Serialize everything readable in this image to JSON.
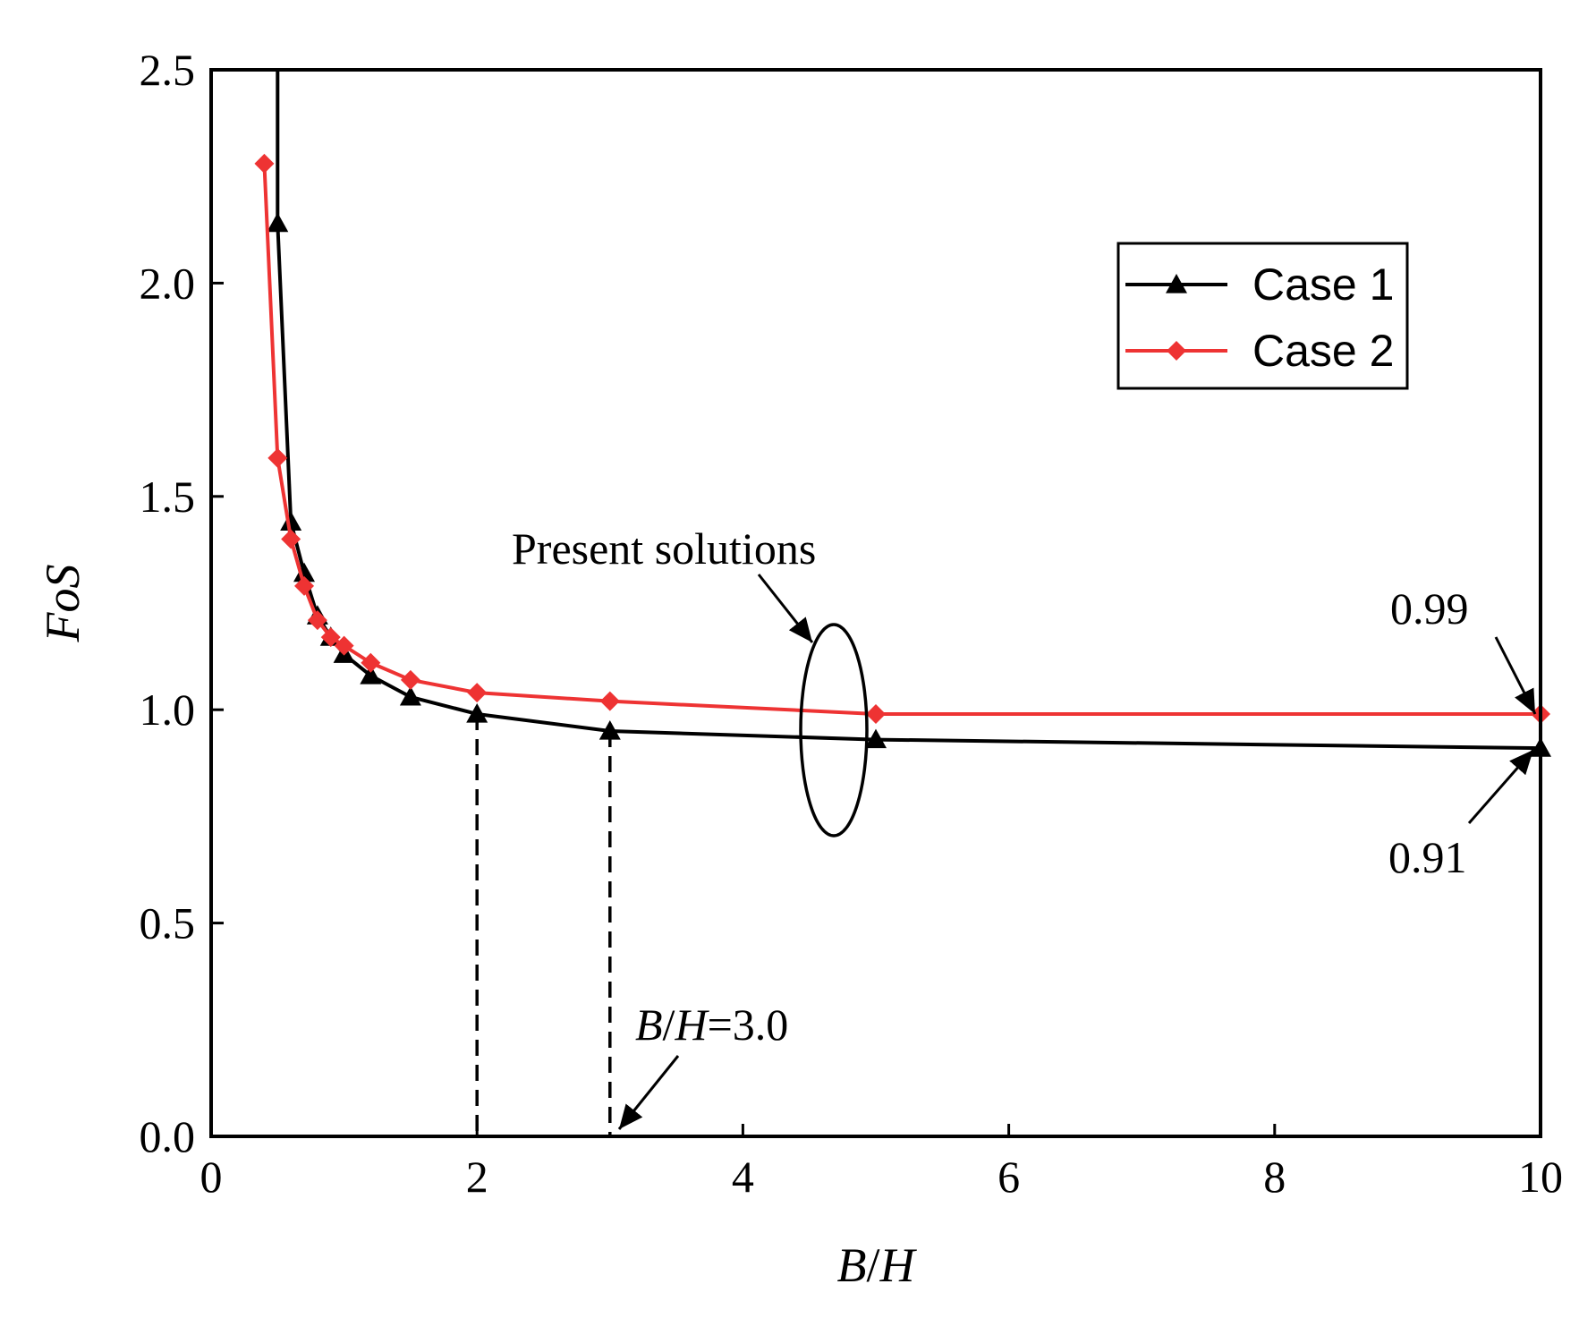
{
  "chart_data": {
    "type": "line",
    "xlabel_parts": [
      {
        "text": "B",
        "italic": true
      },
      {
        "text": "/",
        "italic": false
      },
      {
        "text": "H",
        "italic": true
      }
    ],
    "ylabel": "FoS",
    "xlim": [
      0,
      10
    ],
    "ylim": [
      0,
      2.5
    ],
    "xticks": [
      0,
      2,
      4,
      6,
      8,
      10
    ],
    "xtick_labels": [
      "0",
      "2",
      "4",
      "6",
      "8",
      "10"
    ],
    "yticks": [
      0,
      0.5,
      1.0,
      1.5,
      2.0,
      2.5
    ],
    "ytick_labels": [
      "0.0",
      "0.5",
      "1.0",
      "1.5",
      "2.0",
      "2.5"
    ],
    "grid": false,
    "legend": {
      "position": "top-right"
    },
    "series": [
      {
        "name": "Case 1",
        "color": "#000000",
        "marker": "triangle",
        "x": [
          0.5,
          0.6,
          0.7,
          0.8,
          0.9,
          1.0,
          1.2,
          1.5,
          2.0,
          3.0,
          5.0,
          10.0
        ],
        "y": [
          2.14,
          1.44,
          1.32,
          1.22,
          1.17,
          1.13,
          1.08,
          1.03,
          0.99,
          0.95,
          0.93,
          0.91
        ],
        "y_start": 2.5
      },
      {
        "name": "Case 2",
        "color": "#ee3333",
        "marker": "diamond",
        "x": [
          0.4,
          0.5,
          0.6,
          0.7,
          0.8,
          0.9,
          1.0,
          1.2,
          1.5,
          2.0,
          3.0,
          5.0,
          10.0
        ],
        "y": [
          2.28,
          1.59,
          1.4,
          1.29,
          1.21,
          1.17,
          1.15,
          1.11,
          1.07,
          1.04,
          1.02,
          0.99,
          0.99
        ]
      }
    ],
    "reference_lines": [
      {
        "x": 2.0,
        "y_top": 0.99
      },
      {
        "x": 3.0,
        "y_top": 0.95
      }
    ],
    "annotations": {
      "present_solutions": "Present solutions",
      "label_099": "0.99",
      "label_091": "0.91",
      "bh_parts": [
        {
          "text": "B",
          "italic": true
        },
        {
          "text": "/",
          "italic": false
        },
        {
          "text": "H",
          "italic": true
        },
        {
          "text": "=3.0",
          "italic": false
        }
      ]
    }
  }
}
